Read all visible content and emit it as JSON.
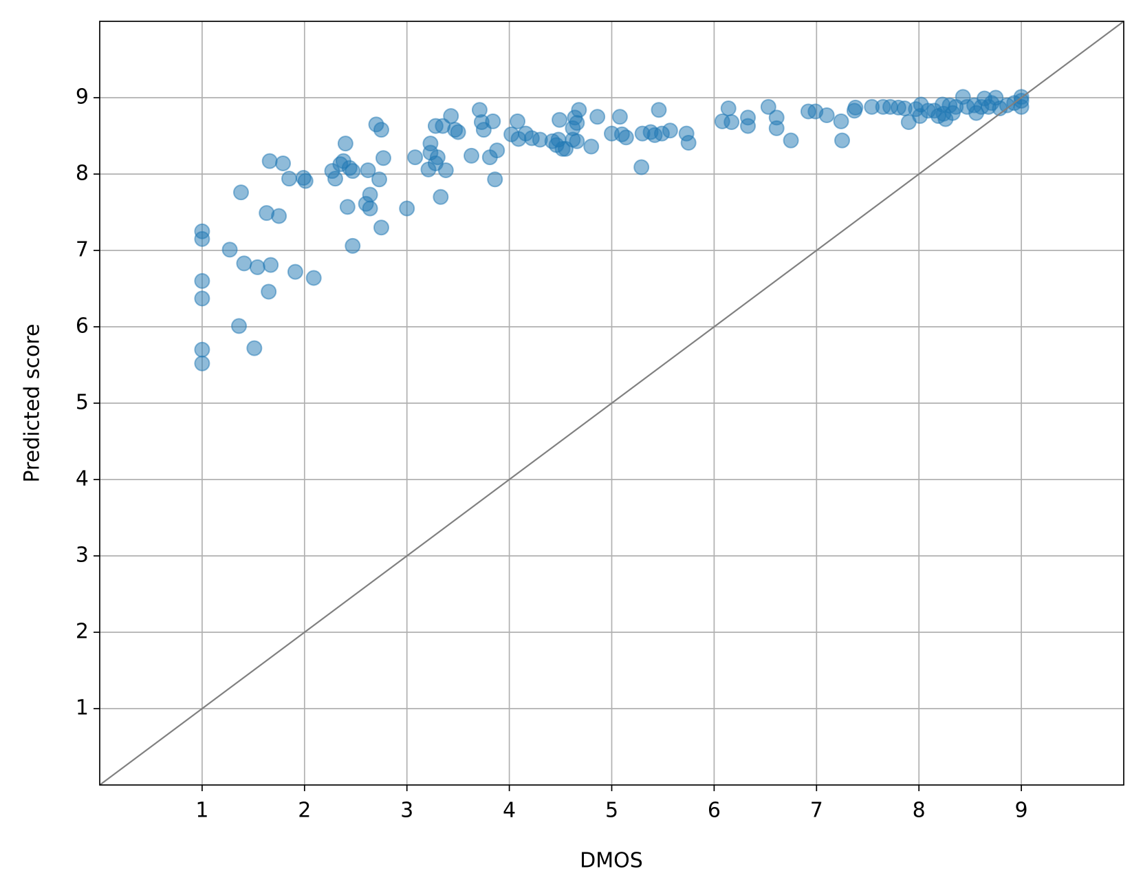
{
  "chart_data": {
    "type": "scatter",
    "x_label": "DMOS",
    "y_label": "Predicted score",
    "xlim": [
      0,
      10
    ],
    "ylim": [
      0,
      10
    ],
    "xticks": [
      1,
      2,
      3,
      4,
      5,
      6,
      7,
      8,
      9
    ],
    "yticks": [
      1,
      2,
      3,
      4,
      5,
      6,
      7,
      8,
      9
    ],
    "grid": true,
    "color": "#1f77b4",
    "reference_line": {
      "x": [
        0,
        10
      ],
      "y": [
        0,
        10
      ],
      "color": "#808080"
    },
    "x": [
      1.0,
      1.0,
      1.0,
      1.0,
      1.0,
      1.0,
      1.27,
      1.38,
      1.41,
      1.36,
      1.51,
      1.54,
      1.63,
      1.66,
      1.67,
      1.65,
      1.75,
      1.79,
      1.85,
      1.91,
      1.99,
      2.01,
      2.09,
      2.27,
      2.3,
      2.35,
      2.38,
      2.4,
      2.44,
      2.47,
      2.42,
      2.47,
      2.62,
      2.64,
      2.6,
      2.64,
      2.7,
      2.75,
      2.73,
      2.77,
      2.75,
      3.0,
      3.08,
      3.21,
      3.23,
      3.23,
      3.28,
      3.28,
      3.3,
      3.33,
      3.38,
      3.35,
      3.43,
      3.47,
      3.5,
      3.63,
      3.71,
      3.73,
      3.75,
      3.81,
      3.84,
      3.86,
      3.88,
      4.02,
      4.08,
      4.09,
      4.16,
      4.22,
      4.3,
      4.42,
      4.48,
      4.49,
      4.46,
      4.52,
      4.55,
      4.62,
      4.62,
      4.64,
      4.66,
      4.66,
      4.68,
      4.8,
      4.86,
      5.0,
      5.08,
      5.1,
      5.14,
      5.29,
      5.3,
      5.38,
      5.42,
      5.46,
      5.49,
      5.57,
      5.73,
      5.75,
      6.08,
      6.14,
      6.17,
      6.33,
      6.33,
      6.53,
      6.61,
      6.61,
      6.75,
      6.92,
      6.99,
      7.1,
      7.24,
      7.25,
      7.37,
      7.38,
      7.54,
      7.65,
      7.72,
      7.8,
      7.86,
      7.9,
      7.97,
      8.01,
      8.02,
      8.09,
      8.15,
      8.19,
      8.24,
      8.26,
      8.3,
      8.33,
      8.36,
      8.43,
      8.47,
      8.56,
      8.61,
      8.64,
      8.68,
      8.71,
      8.75,
      8.79,
      8.86,
      8.93,
      9.0,
      9.0,
      9.0,
      8.54,
      8.23
    ],
    "y": [
      7.25,
      7.15,
      6.6,
      6.37,
      5.7,
      5.52,
      7.01,
      7.76,
      6.83,
      6.01,
      5.72,
      6.78,
      7.49,
      8.17,
      6.81,
      6.46,
      7.45,
      8.14,
      7.94,
      6.72,
      7.95,
      7.91,
      6.64,
      8.04,
      7.94,
      8.13,
      8.17,
      8.4,
      8.08,
      8.04,
      7.57,
      7.06,
      8.05,
      7.73,
      7.61,
      7.55,
      8.65,
      8.58,
      7.93,
      8.21,
      7.3,
      7.55,
      8.22,
      8.06,
      8.4,
      8.28,
      8.63,
      8.14,
      8.22,
      7.7,
      8.05,
      8.63,
      8.76,
      8.58,
      8.55,
      8.24,
      8.84,
      8.68,
      8.58,
      8.22,
      8.69,
      7.93,
      8.31,
      8.52,
      8.69,
      8.46,
      8.53,
      8.47,
      8.45,
      8.43,
      8.45,
      8.71,
      8.38,
      8.33,
      8.33,
      8.45,
      8.6,
      8.74,
      8.67,
      8.43,
      8.84,
      8.36,
      8.75,
      8.53,
      8.75,
      8.52,
      8.48,
      8.09,
      8.53,
      8.55,
      8.51,
      8.84,
      8.53,
      8.57,
      8.53,
      8.41,
      8.69,
      8.86,
      8.68,
      8.74,
      8.63,
      8.88,
      8.74,
      8.6,
      8.44,
      8.82,
      8.82,
      8.77,
      8.69,
      8.44,
      8.83,
      8.87,
      8.88,
      8.88,
      8.88,
      8.87,
      8.86,
      8.68,
      8.85,
      8.76,
      8.91,
      8.83,
      8.83,
      8.76,
      8.79,
      8.72,
      8.9,
      8.8,
      8.88,
      9.01,
      8.88,
      8.8,
      8.88,
      8.99,
      8.88,
      8.93,
      9.0,
      8.86,
      8.9,
      8.93,
      9.01,
      8.96,
      8.88,
      8.9,
      8.91
    ]
  }
}
